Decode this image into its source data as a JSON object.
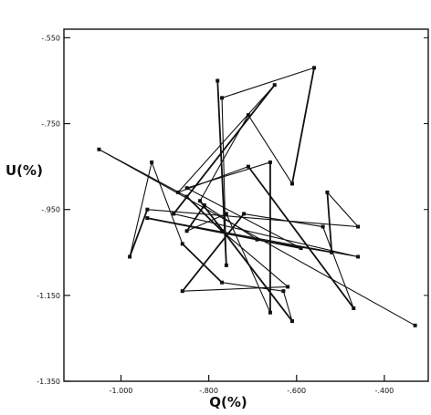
{
  "chart_data": {
    "type": "line",
    "title": "",
    "xlabel": "Q(%)",
    "ylabel": "U(%)",
    "xlim": [
      -1.13,
      -0.3
    ],
    "ylim": [
      -1.35,
      -0.53
    ],
    "xticks": [
      {
        "value": -1.0,
        "label": "-1.000"
      },
      {
        "value": -0.8,
        "label": "-.800"
      },
      {
        "value": -0.6,
        "label": "-.600"
      },
      {
        "value": -0.4,
        "label": "-.400"
      }
    ],
    "yticks": [
      {
        "value": -0.55,
        "label": "-.550"
      },
      {
        "value": -0.75,
        "label": "-.750"
      },
      {
        "value": -0.95,
        "label": "-.950"
      },
      {
        "value": -1.15,
        "label": "-1.150"
      },
      {
        "value": -1.35,
        "label": "-1.350"
      }
    ],
    "grid": false,
    "series": [
      {
        "marker": "square",
        "points": [
          [
            -0.78,
            -0.65
          ],
          [
            -0.76,
            -1.08
          ],
          [
            -0.77,
            -0.69
          ],
          [
            -0.56,
            -0.62
          ],
          [
            -0.61,
            -0.89
          ],
          [
            -0.71,
            -0.73
          ],
          [
            -0.82,
            -0.93
          ],
          [
            -0.61,
            -1.21
          ],
          [
            -0.63,
            -1.14
          ],
          [
            -0.77,
            -1.12
          ],
          [
            -0.86,
            -1.03
          ],
          [
            -0.93,
            -0.84
          ],
          [
            -0.98,
            -1.06
          ],
          [
            -0.94,
            -0.95
          ],
          [
            -0.46,
            -0.99
          ],
          [
            -0.53,
            -0.91
          ],
          [
            -0.52,
            -1.05
          ],
          [
            -0.69,
            -1.02
          ],
          [
            -0.81,
            -0.94
          ],
          [
            -0.85,
            -1.0
          ],
          [
            -0.76,
            -0.96
          ],
          [
            -0.66,
            -1.19
          ],
          [
            -0.66,
            -0.84
          ],
          [
            -0.85,
            -0.9
          ],
          [
            -0.59,
            -1.04
          ],
          [
            -0.94,
            -0.97
          ],
          [
            -0.46,
            -1.06
          ],
          [
            -0.88,
            -0.96
          ],
          [
            -0.65,
            -0.66
          ],
          [
            -0.87,
            -0.91
          ],
          [
            -0.71,
            -0.85
          ],
          [
            -0.47,
            -1.18
          ],
          [
            -0.54,
            -0.99
          ],
          [
            -0.72,
            -0.96
          ],
          [
            -0.86,
            -1.14
          ],
          [
            -0.62,
            -1.13
          ],
          [
            -0.77,
            -1.0
          ],
          [
            -0.85,
            -0.92
          ],
          [
            -1.05,
            -0.81
          ],
          [
            -0.33,
            -1.22
          ]
        ]
      }
    ]
  }
}
